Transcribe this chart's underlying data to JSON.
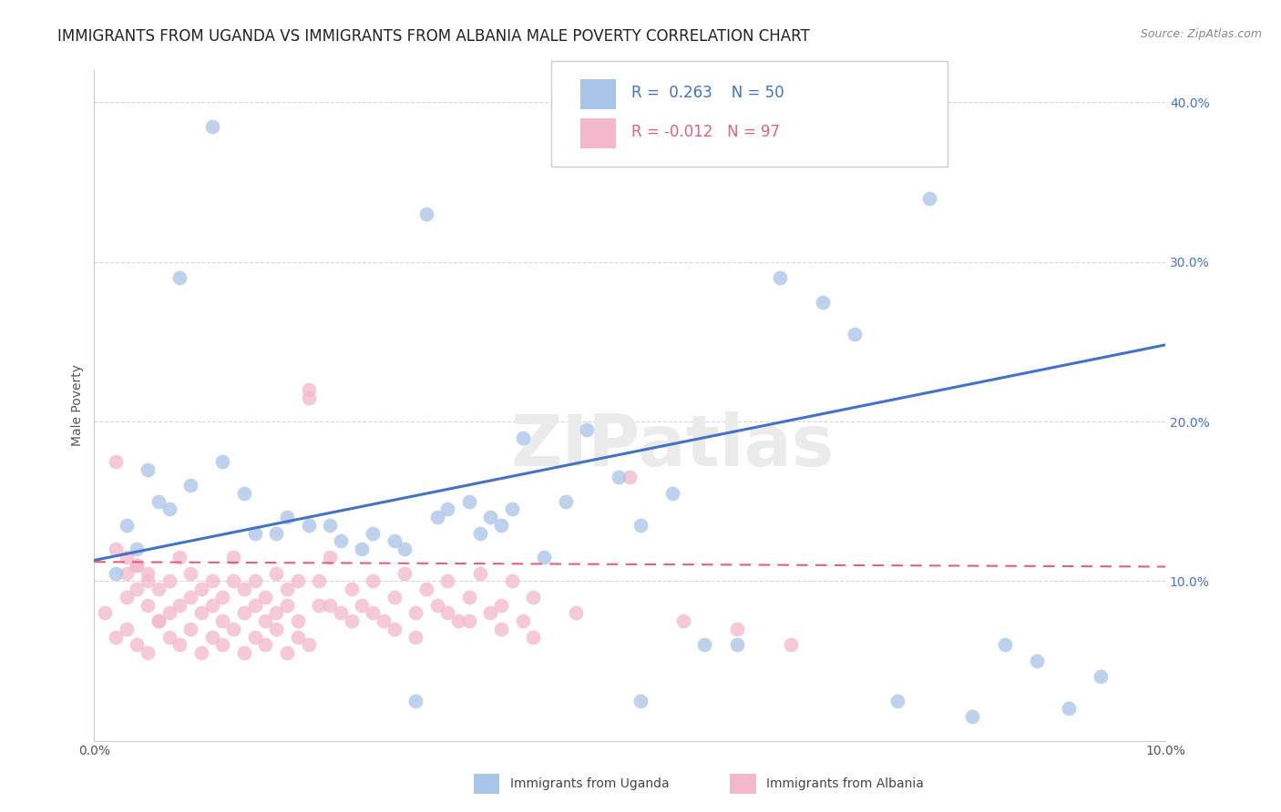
{
  "title": "IMMIGRANTS FROM UGANDA VS IMMIGRANTS FROM ALBANIA MALE POVERTY CORRELATION CHART",
  "source": "Source: ZipAtlas.com",
  "ylabel": "Male Poverty",
  "xlim": [
    0.0,
    0.1
  ],
  "ylim": [
    0.0,
    0.42
  ],
  "y_ticks_right": [
    0.1,
    0.2,
    0.3,
    0.4
  ],
  "y_tick_labels_right": [
    "10.0%",
    "20.0%",
    "30.0%",
    "40.0%"
  ],
  "series": [
    {
      "name": "Immigrants from Uganda",
      "R": 0.263,
      "N": 50,
      "color": "#a8c4e8",
      "line_color": "#4472c4"
    },
    {
      "name": "Immigrants from Albania",
      "R": -0.012,
      "N": 97,
      "color": "#f4b8cc",
      "line_color": "#e06080"
    }
  ],
  "watermark": "ZIPatlas",
  "background_color": "#ffffff",
  "grid_color": "#d8d8d8",
  "title_fontsize": 12,
  "axis_fontsize": 10,
  "legend_fontsize": 12,
  "uganda_x": [
    0.011,
    0.008,
    0.006,
    0.003,
    0.005,
    0.002,
    0.004,
    0.007,
    0.009,
    0.012,
    0.015,
    0.018,
    0.022,
    0.025,
    0.028,
    0.031,
    0.033,
    0.036,
    0.038,
    0.04,
    0.014,
    0.017,
    0.02,
    0.023,
    0.026,
    0.029,
    0.032,
    0.035,
    0.037,
    0.039,
    0.042,
    0.044,
    0.046,
    0.049,
    0.051,
    0.054,
    0.057,
    0.06,
    0.064,
    0.068,
    0.071,
    0.075,
    0.078,
    0.082,
    0.085,
    0.088,
    0.091,
    0.094,
    0.051,
    0.03
  ],
  "uganda_y": [
    0.385,
    0.29,
    0.15,
    0.135,
    0.17,
    0.105,
    0.12,
    0.145,
    0.16,
    0.175,
    0.13,
    0.14,
    0.135,
    0.12,
    0.125,
    0.33,
    0.145,
    0.13,
    0.135,
    0.19,
    0.155,
    0.13,
    0.135,
    0.125,
    0.13,
    0.12,
    0.14,
    0.15,
    0.14,
    0.145,
    0.115,
    0.15,
    0.195,
    0.165,
    0.135,
    0.155,
    0.06,
    0.06,
    0.29,
    0.275,
    0.255,
    0.025,
    0.34,
    0.015,
    0.06,
    0.05,
    0.02,
    0.04,
    0.025,
    0.025
  ],
  "albania_x": [
    0.001,
    0.002,
    0.003,
    0.003,
    0.004,
    0.004,
    0.005,
    0.005,
    0.006,
    0.006,
    0.007,
    0.007,
    0.008,
    0.008,
    0.009,
    0.009,
    0.01,
    0.01,
    0.011,
    0.011,
    0.012,
    0.012,
    0.013,
    0.013,
    0.014,
    0.014,
    0.015,
    0.015,
    0.016,
    0.016,
    0.017,
    0.017,
    0.018,
    0.018,
    0.019,
    0.019,
    0.02,
    0.02,
    0.021,
    0.021,
    0.022,
    0.023,
    0.024,
    0.025,
    0.026,
    0.027,
    0.028,
    0.029,
    0.03,
    0.031,
    0.032,
    0.033,
    0.034,
    0.035,
    0.036,
    0.037,
    0.038,
    0.039,
    0.04,
    0.041,
    0.002,
    0.003,
    0.004,
    0.005,
    0.006,
    0.007,
    0.008,
    0.009,
    0.01,
    0.011,
    0.012,
    0.013,
    0.014,
    0.015,
    0.016,
    0.017,
    0.018,
    0.019,
    0.02,
    0.022,
    0.024,
    0.026,
    0.028,
    0.03,
    0.033,
    0.035,
    0.038,
    0.041,
    0.045,
    0.05,
    0.055,
    0.06,
    0.065,
    0.002,
    0.003,
    0.004,
    0.005
  ],
  "albania_y": [
    0.08,
    0.175,
    0.09,
    0.105,
    0.095,
    0.11,
    0.085,
    0.1,
    0.075,
    0.095,
    0.08,
    0.1,
    0.115,
    0.085,
    0.09,
    0.105,
    0.08,
    0.095,
    0.1,
    0.085,
    0.09,
    0.075,
    0.1,
    0.115,
    0.08,
    0.095,
    0.085,
    0.1,
    0.075,
    0.09,
    0.105,
    0.08,
    0.095,
    0.085,
    0.1,
    0.075,
    0.215,
    0.22,
    0.085,
    0.1,
    0.115,
    0.08,
    0.095,
    0.085,
    0.1,
    0.075,
    0.09,
    0.105,
    0.08,
    0.095,
    0.085,
    0.1,
    0.075,
    0.09,
    0.105,
    0.08,
    0.085,
    0.1,
    0.075,
    0.09,
    0.065,
    0.07,
    0.06,
    0.055,
    0.075,
    0.065,
    0.06,
    0.07,
    0.055,
    0.065,
    0.06,
    0.07,
    0.055,
    0.065,
    0.06,
    0.07,
    0.055,
    0.065,
    0.06,
    0.085,
    0.075,
    0.08,
    0.07,
    0.065,
    0.08,
    0.075,
    0.07,
    0.065,
    0.08,
    0.165,
    0.075,
    0.07,
    0.06,
    0.12,
    0.115,
    0.11,
    0.105
  ],
  "uganda_trendline": [
    0.113,
    0.248
  ],
  "albania_trendline": [
    0.112,
    0.109
  ]
}
